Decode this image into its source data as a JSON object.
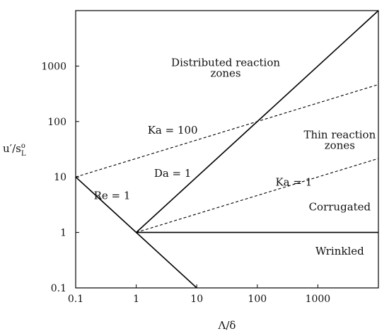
{
  "chart_data": {
    "type": "line",
    "x_scale": "log",
    "y_scale": "log",
    "xlim": [
      0.1,
      10000
    ],
    "ylim": [
      0.1,
      10000
    ],
    "x_ticks": [
      {
        "value": 0.1,
        "label": "0.1"
      },
      {
        "value": 1,
        "label": "1"
      },
      {
        "value": 10,
        "label": "10"
      },
      {
        "value": 100,
        "label": "100"
      },
      {
        "value": 1000,
        "label": "1000"
      }
    ],
    "y_ticks": [
      {
        "value": 0.1,
        "label": "0.1"
      },
      {
        "value": 1,
        "label": "1"
      },
      {
        "value": 10,
        "label": "10"
      },
      {
        "value": 100,
        "label": "100"
      },
      {
        "value": 1000,
        "label": "1000"
      }
    ],
    "xlabel": "Λ/δ",
    "ylabel": "u′/s",
    "ylabel_sup": "o",
    "ylabel_sub": "L",
    "lines": [
      {
        "id": "re1",
        "style": "solid",
        "points": [
          [
            0.1,
            10
          ],
          [
            10,
            0.1
          ]
        ]
      },
      {
        "id": "da1",
        "style": "solid",
        "points": [
          [
            1,
            1
          ],
          [
            10000,
            10000
          ]
        ]
      },
      {
        "id": "u1",
        "style": "solid",
        "points": [
          [
            1,
            1
          ],
          [
            10000,
            1
          ]
        ]
      },
      {
        "id": "ka100",
        "style": "dashed",
        "points": [
          [
            0.1,
            10
          ],
          [
            10000,
            464
          ]
        ]
      },
      {
        "id": "ka1",
        "style": "dashed",
        "points": [
          [
            1,
            1
          ],
          [
            10000,
            21.5
          ]
        ]
      }
    ],
    "annotations": [
      {
        "id": "distributed",
        "lines": [
          "Distributed reaction",
          "zones"
        ],
        "x": 30,
        "y": 1000
      },
      {
        "id": "thin",
        "lines": [
          "Thin reaction",
          "zones"
        ],
        "x": 2300,
        "y": 50
      },
      {
        "id": "ka100",
        "lines": [
          "Ka = 100"
        ],
        "x": 4,
        "y": 60
      },
      {
        "id": "da1",
        "lines": [
          "Da = 1"
        ],
        "x": 4,
        "y": 10
      },
      {
        "id": "ka1",
        "lines": [
          "Ka = 1"
        ],
        "x": 400,
        "y": 7
      },
      {
        "id": "re1",
        "lines": [
          "Re = 1"
        ],
        "x": 0.4,
        "y": 4
      },
      {
        "id": "corrugated",
        "lines": [
          "Corrugated"
        ],
        "x": 2300,
        "y": 2.5
      },
      {
        "id": "wrinkled",
        "lines": [
          "Wrinkled"
        ],
        "x": 2300,
        "y": 0.4
      }
    ]
  }
}
